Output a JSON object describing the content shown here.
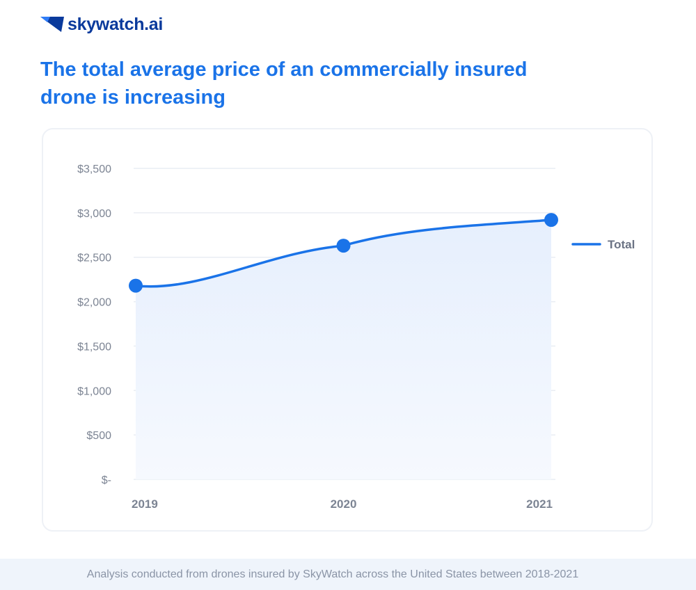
{
  "brand": {
    "name": "skywatch.ai",
    "color": "#0a3a9c"
  },
  "title": "The total average price of an commercially insured drone is increasing",
  "footer": "Analysis conducted from drones insured by SkyWatch across the United States between 2018-2021",
  "chart_data": {
    "type": "line",
    "title": "The total average price of an commercially insured drone is increasing",
    "xlabel": "",
    "ylabel": "",
    "categories": [
      "2019",
      "2020",
      "2021"
    ],
    "series": [
      {
        "name": "Total",
        "values": [
          2180,
          2630,
          2920
        ],
        "color": "#1a73e8"
      }
    ],
    "ylim": [
      0,
      3500
    ],
    "yticks": [
      0,
      500,
      1000,
      1500,
      2000,
      2500,
      3000,
      3500
    ],
    "ytick_labels": [
      "$-",
      "$500",
      "$1,000",
      "$1,500",
      "$2,000",
      "$2,500",
      "$3,000",
      "$3,500"
    ],
    "grid": true,
    "legend": "right",
    "smooth": true,
    "area_fill": true
  }
}
